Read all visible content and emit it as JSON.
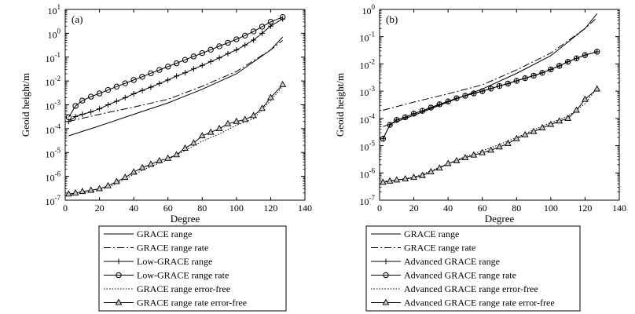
{
  "chart_data": [
    {
      "type": "line",
      "panel_label": "(a)",
      "xlabel": "Degree",
      "ylabel": "Geoid height/m",
      "yscale": "log",
      "xlim": [
        0,
        140
      ],
      "ylim": [
        1e-07,
        10
      ],
      "x_ticks": [
        "0",
        "20",
        "40",
        "60",
        "80",
        "100",
        "120",
        "140"
      ],
      "y_ticks": [
        {
          "base": "10",
          "exp": "-7"
        },
        {
          "base": "10",
          "exp": "-6"
        },
        {
          "base": "10",
          "exp": "-5"
        },
        {
          "base": "10",
          "exp": "-4"
        },
        {
          "base": "10",
          "exp": "-3"
        },
        {
          "base": "10",
          "exp": "-2"
        },
        {
          "base": "10",
          "exp": "-1"
        },
        {
          "base": "10",
          "exp": "0"
        },
        {
          "base": "10",
          "exp": "1"
        }
      ],
      "series": [
        {
          "name": "GRACE  range",
          "style": "solid",
          "marker": "none",
          "x": [
            2,
            20,
            40,
            60,
            80,
            100,
            120,
            127
          ],
          "y": [
            5e-05,
            0.00013,
            0.0004,
            0.0012,
            0.0045,
            0.02,
            0.2,
            0.7
          ]
        },
        {
          "name": "GRACE  range rate",
          "style": "dashdot",
          "marker": "none",
          "x": [
            2,
            20,
            40,
            60,
            80,
            100,
            120,
            127
          ],
          "y": [
            0.0002,
            0.0004,
            0.0008,
            0.0017,
            0.006,
            0.025,
            0.2,
            0.5
          ]
        },
        {
          "name": "Low-GRACE  range",
          "style": "solid",
          "marker": "plus",
          "x": [
            2,
            6,
            10,
            15,
            20,
            25,
            30,
            35,
            40,
            45,
            50,
            55,
            60,
            65,
            70,
            75,
            80,
            85,
            90,
            95,
            100,
            105,
            110,
            115,
            120,
            127
          ],
          "y": [
            0.0002,
            0.00032,
            0.0004,
            0.0005,
            0.00068,
            0.001,
            0.0014,
            0.002,
            0.0029,
            0.004,
            0.0055,
            0.0078,
            0.011,
            0.016,
            0.022,
            0.032,
            0.045,
            0.065,
            0.093,
            0.14,
            0.2,
            0.32,
            0.52,
            1.0,
            2.0,
            4.0
          ]
        },
        {
          "name": "Low-GRACE  range rate",
          "style": "solid",
          "marker": "circle",
          "x": [
            2,
            6,
            10,
            15,
            20,
            25,
            30,
            35,
            40,
            45,
            50,
            55,
            60,
            65,
            70,
            75,
            80,
            85,
            90,
            95,
            100,
            105,
            110,
            115,
            120,
            127
          ],
          "y": [
            0.0003,
            0.0009,
            0.0015,
            0.0022,
            0.003,
            0.0042,
            0.0058,
            0.008,
            0.011,
            0.015,
            0.021,
            0.029,
            0.04,
            0.055,
            0.077,
            0.107,
            0.148,
            0.205,
            0.285,
            0.4,
            0.56,
            0.8,
            1.2,
            1.9,
            3.0,
            4.8
          ]
        },
        {
          "name": "GRACE  range error-free",
          "style": "dotted",
          "marker": "none",
          "x": [
            2,
            10,
            20,
            30,
            40,
            50,
            60,
            70,
            80,
            90,
            100,
            110,
            120,
            127
          ],
          "y": [
            1.6e-07,
            2e-07,
            2.6e-07,
            5e-07,
            1.2e-06,
            2.6e-06,
            5e-06,
            1.2e-05,
            3e-05,
            6e-05,
            0.00014,
            0.00026,
            0.0015,
            0.006
          ]
        },
        {
          "name": "GRACE  range rate error-free",
          "style": "solid",
          "marker": "triangle",
          "x": [
            2,
            6,
            10,
            15,
            20,
            25,
            30,
            35,
            40,
            45,
            50,
            55,
            60,
            65,
            70,
            75,
            80,
            85,
            90,
            95,
            100,
            105,
            110,
            115,
            120,
            127
          ],
          "y": [
            1.8e-07,
            2e-07,
            2.3e-07,
            2.6e-07,
            3e-07,
            4e-07,
            6e-07,
            9e-07,
            1.5e-06,
            2.3e-06,
            3.2e-06,
            4.5e-06,
            5.7e-06,
            8e-06,
            1.5e-05,
            2.5e-05,
            5e-05,
            7e-05,
            0.0001,
            0.00016,
            0.0002,
            0.00024,
            0.00035,
            0.0007,
            0.002,
            0.007
          ]
        }
      ]
    },
    {
      "type": "line",
      "panel_label": "(b)",
      "xlabel": "Degree",
      "ylabel": "Geoid height/m",
      "yscale": "log",
      "xlim": [
        0,
        140
      ],
      "ylim": [
        1e-07,
        1
      ],
      "x_ticks": [
        "0",
        "20",
        "40",
        "60",
        "80",
        "100",
        "120",
        "140"
      ],
      "y_ticks": [
        {
          "base": "10",
          "exp": "-7"
        },
        {
          "base": "10",
          "exp": "-6"
        },
        {
          "base": "10",
          "exp": "-5"
        },
        {
          "base": "10",
          "exp": "-4"
        },
        {
          "base": "10",
          "exp": "-3"
        },
        {
          "base": "10",
          "exp": "-2"
        },
        {
          "base": "10",
          "exp": "-1"
        },
        {
          "base": "10",
          "exp": "0"
        }
      ],
      "series": [
        {
          "name": "GRACE  range",
          "style": "solid",
          "marker": "none",
          "x": [
            2,
            20,
            40,
            60,
            80,
            100,
            120,
            127
          ],
          "y": [
            5e-05,
            0.00013,
            0.0004,
            0.0012,
            0.0045,
            0.02,
            0.2,
            0.7
          ]
        },
        {
          "name": "GRACE  range rate",
          "style": "dashdot",
          "marker": "none",
          "x": [
            2,
            20,
            40,
            60,
            80,
            100,
            120,
            127
          ],
          "y": [
            0.0002,
            0.0004,
            0.0008,
            0.0017,
            0.006,
            0.025,
            0.2,
            0.5
          ]
        },
        {
          "name": "Advanced GRACE range",
          "style": "solid",
          "marker": "plus",
          "x": [
            2,
            6,
            10,
            15,
            20,
            25,
            30,
            35,
            40,
            45,
            50,
            55,
            60,
            65,
            70,
            75,
            80,
            85,
            90,
            95,
            100,
            105,
            110,
            115,
            120,
            127
          ],
          "y": [
            1.8e-05,
            5.8e-05,
            8.8e-05,
            0.00011,
            0.00015,
            0.00019,
            0.00025,
            0.00033,
            0.00042,
            0.00055,
            0.00068,
            0.00083,
            0.001,
            0.00125,
            0.00155,
            0.0019,
            0.0024,
            0.003,
            0.0037,
            0.0047,
            0.0063,
            0.0085,
            0.012,
            0.016,
            0.021,
            0.028
          ]
        },
        {
          "name": "Advanced GRACE range rate",
          "style": "solid",
          "marker": "circle",
          "x": [
            2,
            6,
            10,
            15,
            20,
            25,
            30,
            35,
            40,
            45,
            50,
            55,
            60,
            65,
            70,
            75,
            80,
            85,
            90,
            95,
            100,
            105,
            110,
            115,
            120,
            127
          ],
          "y": [
            1.8e-05,
            5.8e-05,
            8.8e-05,
            0.00011,
            0.00015,
            0.00019,
            0.00025,
            0.00033,
            0.00042,
            0.00055,
            0.00068,
            0.00083,
            0.001,
            0.00125,
            0.00155,
            0.0019,
            0.0024,
            0.003,
            0.0037,
            0.0047,
            0.0063,
            0.0085,
            0.012,
            0.016,
            0.021,
            0.028
          ]
        },
        {
          "name": "Advanced GRACE range error-free",
          "style": "dotted",
          "marker": "none",
          "x": [
            2,
            10,
            20,
            30,
            40,
            50,
            60,
            70,
            80,
            90,
            100,
            110,
            120,
            127
          ],
          "y": [
            5e-07,
            5.5e-07,
            7e-07,
            1.2e-06,
            2.2e-06,
            4e-06,
            6.5e-06,
            1.1e-05,
            2e-05,
            3.8e-05,
            7e-05,
            0.00012,
            0.00035,
            0.0013
          ]
        },
        {
          "name": "Advanced GRACE range rate error-free",
          "style": "solid",
          "marker": "triangle",
          "x": [
            2,
            6,
            10,
            15,
            20,
            25,
            30,
            35,
            40,
            45,
            50,
            55,
            60,
            65,
            70,
            75,
            80,
            85,
            90,
            95,
            100,
            105,
            110,
            115,
            120,
            127
          ],
          "y": [
            4.5e-07,
            5e-07,
            5.5e-07,
            6e-07,
            6.8e-07,
            8e-07,
            1.1e-06,
            1.5e-06,
            2.2e-06,
            2.8e-06,
            3.6e-06,
            4.5e-06,
            5.5e-06,
            6.8e-06,
            9e-06,
            1.2e-05,
            1.8e-05,
            2.5e-05,
            3.3e-05,
            4.5e-05,
            6e-05,
            8e-05,
            0.0001,
            0.0002,
            0.0005,
            0.0012
          ]
        }
      ]
    }
  ]
}
